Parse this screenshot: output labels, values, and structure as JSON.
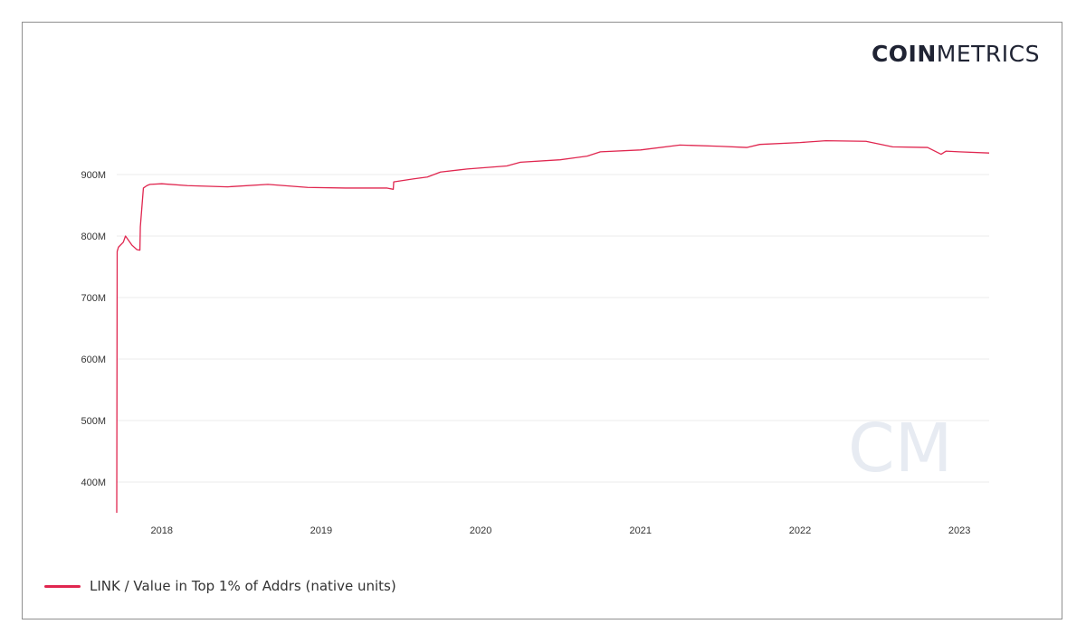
{
  "brand": {
    "bold": "COIN",
    "light": "METRICS",
    "watermark": "CM"
  },
  "colors": {
    "series": "#e0264f",
    "grid": "#ebebeb",
    "text": "#333333",
    "logo": "#1f2333",
    "watermark": "#e7ebf2"
  },
  "chart_data": {
    "type": "line",
    "title": "",
    "xlabel": "",
    "ylabel": "",
    "xlim": [
      "2017-09-20",
      "2023-03-10"
    ],
    "ylim": [
      350000000,
      1000000000
    ],
    "grid": true,
    "legend_position": "bottom-left",
    "y_ticks": [
      {
        "value": 400000000,
        "label": "400M"
      },
      {
        "value": 500000000,
        "label": "500M"
      },
      {
        "value": 600000000,
        "label": "600M"
      },
      {
        "value": 700000000,
        "label": "700M"
      },
      {
        "value": 800000000,
        "label": "800M"
      },
      {
        "value": 900000000,
        "label": "900M"
      }
    ],
    "x_ticks": [
      {
        "value": "2018-01-01",
        "label": "2018"
      },
      {
        "value": "2019-01-01",
        "label": "2019"
      },
      {
        "value": "2020-01-01",
        "label": "2020"
      },
      {
        "value": "2021-01-01",
        "label": "2021"
      },
      {
        "value": "2022-01-01",
        "label": "2022"
      },
      {
        "value": "2023-01-01",
        "label": "2023"
      }
    ],
    "series": [
      {
        "name": "LINK / Value in Top 1% of Addrs (native units)",
        "points": [
          [
            "2017-09-20",
            350000000
          ],
          [
            "2017-09-21",
            775000000
          ],
          [
            "2017-09-24",
            782000000
          ],
          [
            "2017-10-05",
            790000000
          ],
          [
            "2017-10-10",
            800000000
          ],
          [
            "2017-10-15",
            795000000
          ],
          [
            "2017-10-25",
            785000000
          ],
          [
            "2017-11-05",
            778000000
          ],
          [
            "2017-11-12",
            777000000
          ],
          [
            "2017-11-13",
            815000000
          ],
          [
            "2017-11-20",
            878000000
          ],
          [
            "2017-11-28",
            882000000
          ],
          [
            "2017-12-05",
            884000000
          ],
          [
            "2018-01-01",
            885000000
          ],
          [
            "2018-03-01",
            882000000
          ],
          [
            "2018-06-01",
            880000000
          ],
          [
            "2018-09-01",
            884000000
          ],
          [
            "2018-12-01",
            879000000
          ],
          [
            "2019-03-01",
            878000000
          ],
          [
            "2019-06-01",
            878000000
          ],
          [
            "2019-06-15",
            876000000
          ],
          [
            "2019-06-16",
            888000000
          ],
          [
            "2019-08-01",
            893000000
          ],
          [
            "2019-09-01",
            896000000
          ],
          [
            "2019-10-01",
            904000000
          ],
          [
            "2019-12-01",
            909000000
          ],
          [
            "2020-03-01",
            914000000
          ],
          [
            "2020-04-01",
            920000000
          ],
          [
            "2020-07-01",
            924000000
          ],
          [
            "2020-09-01",
            930000000
          ],
          [
            "2020-10-01",
            937000000
          ],
          [
            "2021-01-01",
            940000000
          ],
          [
            "2021-04-01",
            948000000
          ],
          [
            "2021-07-01",
            946000000
          ],
          [
            "2021-09-01",
            944000000
          ],
          [
            "2021-10-01",
            949000000
          ],
          [
            "2022-01-01",
            952000000
          ],
          [
            "2022-03-01",
            955000000
          ],
          [
            "2022-06-01",
            954000000
          ],
          [
            "2022-08-01",
            945000000
          ],
          [
            "2022-10-20",
            944000000
          ],
          [
            "2022-11-20",
            933000000
          ],
          [
            "2022-12-01",
            938000000
          ],
          [
            "2023-01-01",
            937000000
          ],
          [
            "2023-03-10",
            935000000
          ]
        ]
      }
    ]
  }
}
